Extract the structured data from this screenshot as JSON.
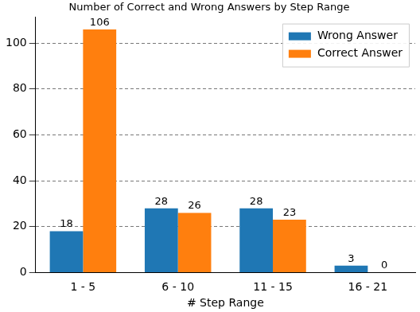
{
  "chart_data": {
    "type": "bar",
    "title": "Number of Correct and Wrong Answers by Step Range",
    "x_label": "# Step Range",
    "categories": [
      "1 - 5",
      "6 - 10",
      "11 - 15",
      "16 - 21"
    ],
    "series": [
      {
        "name": "Wrong Answer",
        "color": "#1f77b4",
        "values": [
          18,
          28,
          28,
          3
        ]
      },
      {
        "name": "Correct Answer",
        "color": "#ff7f0e",
        "values": [
          106,
          26,
          23,
          0
        ]
      }
    ],
    "ylim": [
      0,
      111.3
    ],
    "yticks": [
      0,
      20,
      40,
      60,
      80,
      100
    ],
    "grid": true,
    "legend": "upper right",
    "data_labels": true
  }
}
